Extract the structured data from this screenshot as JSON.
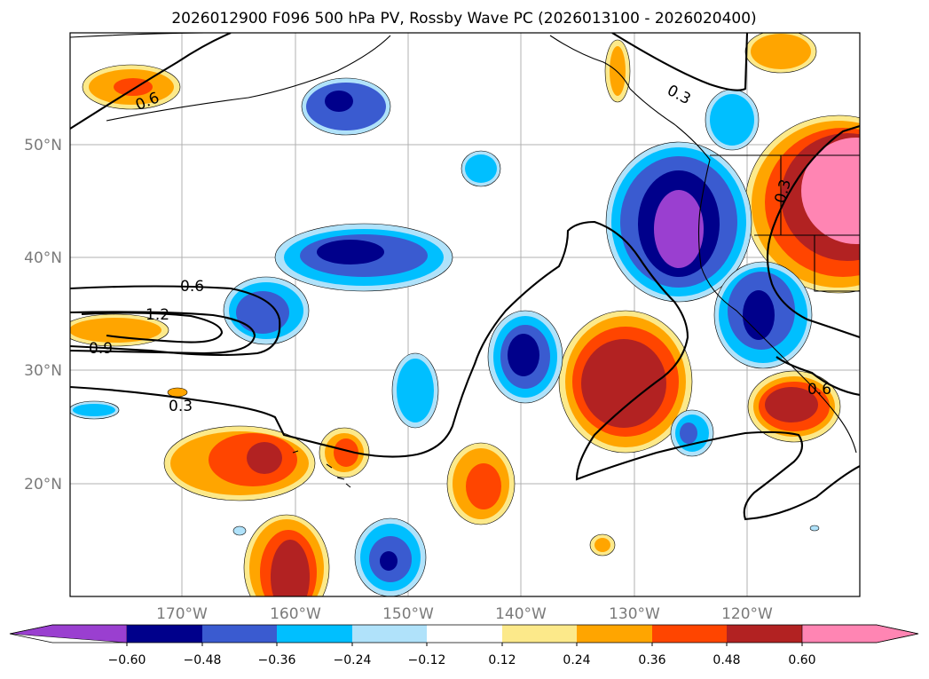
{
  "title": "2026012900 F096 500 hPa PV, Rossby Wave PC (2026013100 - 2026020400)",
  "axes": {
    "lat_labels": [
      "50°N",
      "40°N",
      "30°N",
      "20°N"
    ],
    "lon_labels": [
      "170°W",
      "160°W",
      "150°W",
      "140°W",
      "130°W",
      "120°W"
    ]
  },
  "contour_labels": [
    "0.6",
    "0.3",
    "0.6",
    "1.2",
    "0.9",
    "0.3",
    "0.3",
    "0.6"
  ],
  "colorbar": {
    "ticks": [
      "−0.60",
      "−0.48",
      "−0.36",
      "−0.24",
      "−0.12",
      "0.12",
      "0.24",
      "0.36",
      "0.48",
      "0.60"
    ],
    "colors": [
      "#9a3fd0",
      "#00008b",
      "#3a5bd0",
      "#00bfff",
      "#b0e2fa",
      "#ffffff",
      "#fce98a",
      "#ffa500",
      "#ff4500",
      "#b22222",
      "#ff85b3"
    ]
  },
  "colors": {
    "land_outline": "#000000",
    "grid": "#b0b0b0"
  }
}
